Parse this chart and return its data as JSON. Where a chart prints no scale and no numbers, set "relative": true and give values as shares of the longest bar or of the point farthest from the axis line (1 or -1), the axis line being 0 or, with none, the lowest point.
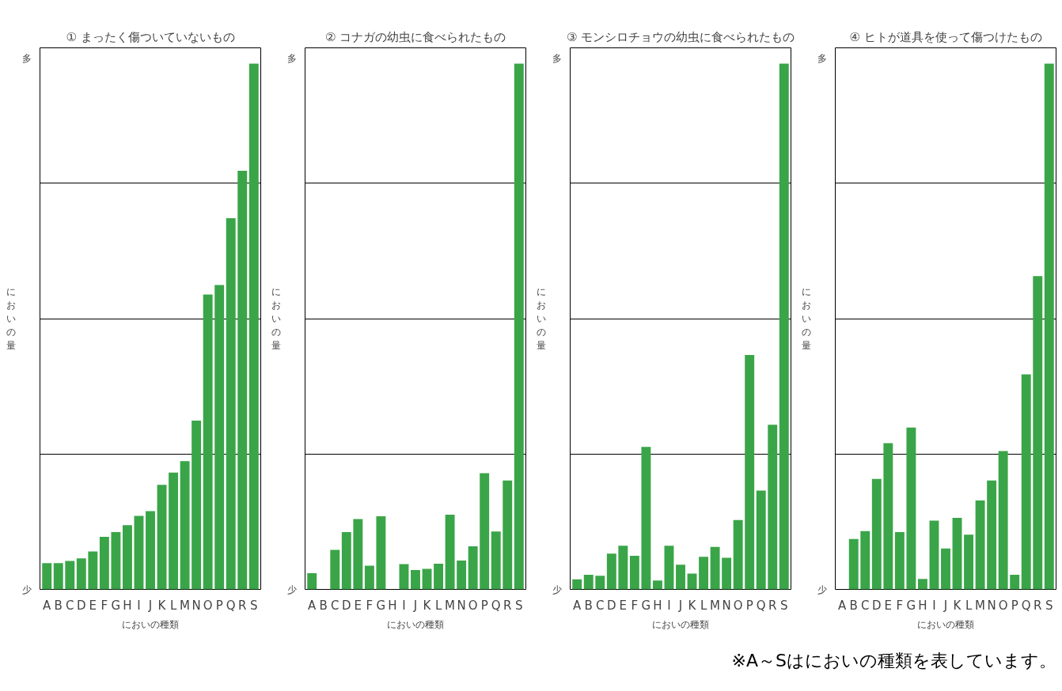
{
  "chart_data": [
    {
      "type": "bar",
      "title": "① まったく傷ついていないもの",
      "xlabel": "においの種類",
      "ylabel": "においの量",
      "relative": true,
      "grid": "y",
      "color": "#3aa548",
      "annotations": [
        "多",
        "少"
      ],
      "categories": [
        "A",
        "B",
        "C",
        "D",
        "E",
        "F",
        "G",
        "H",
        "I",
        "J",
        "K",
        "L",
        "M",
        "N",
        "O",
        "P",
        "Q",
        "R",
        "S"
      ],
      "values": [
        0.05,
        0.05,
        0.054,
        0.059,
        0.072,
        0.1,
        0.109,
        0.122,
        0.14,
        0.149,
        0.199,
        0.222,
        0.244,
        0.321,
        0.561,
        0.579,
        0.706,
        0.796,
        1
      ]
    },
    {
      "type": "bar",
      "title": "② コナガの幼虫に食べられたもの",
      "xlabel": "においの種類",
      "ylabel": "においの量",
      "relative": true,
      "grid": "y",
      "color": "#3aa548",
      "annotations": [
        "多",
        "少"
      ],
      "categories": [
        "A",
        "B",
        "C",
        "D",
        "E",
        "F",
        "G",
        "H",
        "I",
        "J",
        "K",
        "L",
        "M",
        "N",
        "O",
        "P",
        "Q",
        "R",
        "S"
      ],
      "values": [
        0.031,
        0,
        0.075,
        0.109,
        0.134,
        0.045,
        0.139,
        0,
        0.048,
        0.037,
        0.039,
        0.049,
        0.142,
        0.055,
        0.082,
        0.221,
        0.11,
        0.207,
        1
      ]
    },
    {
      "type": "bar",
      "title": "③ モンシロチョウの幼虫に食べられたもの",
      "xlabel": "においの種類",
      "ylabel": "においの量",
      "relative": true,
      "grid": "y",
      "color": "#3aa548",
      "annotations": [
        "多",
        "少"
      ],
      "categories": [
        "A",
        "B",
        "C",
        "D",
        "E",
        "F",
        "G",
        "H",
        "I",
        "J",
        "K",
        "L",
        "M",
        "N",
        "O",
        "P",
        "Q",
        "R",
        "S"
      ],
      "values": [
        0.019,
        0.028,
        0.026,
        0.068,
        0.083,
        0.064,
        0.271,
        0.017,
        0.083,
        0.047,
        0.03,
        0.062,
        0.081,
        0.06,
        0.132,
        0.446,
        0.188,
        0.313,
        1
      ]
    },
    {
      "type": "bar",
      "title": "④ ヒトが道具を使って傷つけたもの",
      "xlabel": "においの種類",
      "ylabel": "においの量",
      "relative": true,
      "grid": "y",
      "color": "#3aa548",
      "annotations": [
        "多",
        "少",
        "※A～Sはにおいの種類を表しています。"
      ],
      "categories": [
        "A",
        "B",
        "C",
        "D",
        "E",
        "F",
        "G",
        "H",
        "I",
        "J",
        "K",
        "L",
        "M",
        "N",
        "O",
        "P",
        "Q",
        "R",
        "S"
      ],
      "values": [
        0,
        0.096,
        0.111,
        0.21,
        0.278,
        0.109,
        0.308,
        0.02,
        0.131,
        0.078,
        0.136,
        0.104,
        0.169,
        0.207,
        0.263,
        0.028,
        0.409,
        0.596,
        1
      ]
    }
  ]
}
